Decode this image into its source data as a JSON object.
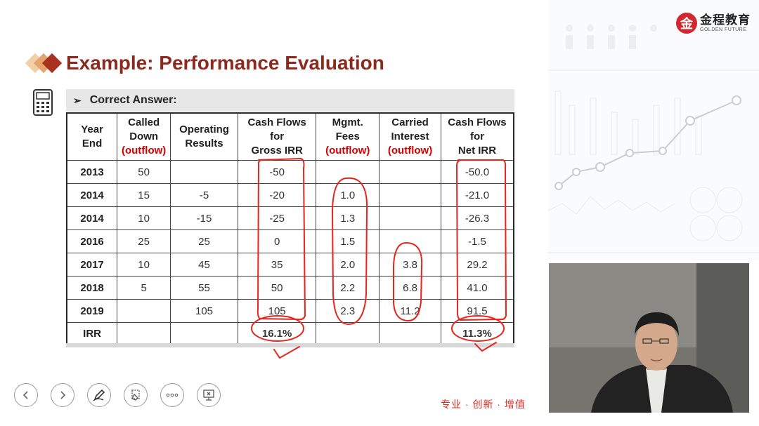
{
  "brand": {
    "name_cn": "金程教育",
    "name_en": "GOLDEN FUTURE",
    "mark_glyph": "金"
  },
  "slide": {
    "title": "Example: Performance Evaluation",
    "answer_label": "Correct Answer:",
    "answer_bullet": "➢"
  },
  "table": {
    "headers": [
      {
        "lines": [
          "Year",
          "End"
        ],
        "note": ""
      },
      {
        "lines": [
          "Called",
          "Down"
        ],
        "note": "(outflow)"
      },
      {
        "lines": [
          "Operating",
          "Results"
        ],
        "note": ""
      },
      {
        "lines": [
          "Cash Flows",
          "for",
          "Gross IRR"
        ],
        "note": ""
      },
      {
        "lines": [
          "Mgmt.",
          "Fees"
        ],
        "note": "(outflow)"
      },
      {
        "lines": [
          "Carried",
          "Interest"
        ],
        "note": "(outflow)"
      },
      {
        "lines": [
          "Cash Flows",
          "for",
          "Net IRR"
        ],
        "note": ""
      }
    ],
    "rows": [
      [
        "2013",
        "50",
        "",
        "-50",
        "",
        "",
        "-50.0"
      ],
      [
        "2014",
        "15",
        "-5",
        "-20",
        "1.0",
        "",
        "-21.0"
      ],
      [
        "2014",
        "10",
        "-15",
        "-25",
        "1.3",
        "",
        "-26.3"
      ],
      [
        "2016",
        "25",
        "25",
        "0",
        "1.5",
        "",
        "-1.5"
      ],
      [
        "2017",
        "10",
        "45",
        "35",
        "2.0",
        "3.8",
        "29.2"
      ],
      [
        "2018",
        "5",
        "55",
        "50",
        "2.2",
        "6.8",
        "41.0"
      ],
      [
        "2019",
        "",
        "105",
        "105",
        "2.3",
        "11.2",
        "91.5"
      ]
    ],
    "irr_row": [
      "IRR",
      "",
      "",
      "16.1%",
      "",
      "",
      "11.3%"
    ]
  },
  "toolbar": {
    "buttons": [
      {
        "name": "prev-slide-button",
        "icon": "chevron-left-icon"
      },
      {
        "name": "next-slide-button",
        "icon": "chevron-right-icon"
      },
      {
        "name": "pen-tool-button",
        "icon": "pen-icon"
      },
      {
        "name": "highlighter-button",
        "icon": "highlighter-icon"
      },
      {
        "name": "more-options-button",
        "icon": "more-dots-icon"
      },
      {
        "name": "exit-show-button",
        "icon": "screen-exit-icon"
      }
    ]
  },
  "slogan": "专业 · 创新 · 增值",
  "colors": {
    "title": "#8b2a1e",
    "outflow": "#d40000",
    "annotation": "#e8241c",
    "brand": "#d0282e"
  }
}
